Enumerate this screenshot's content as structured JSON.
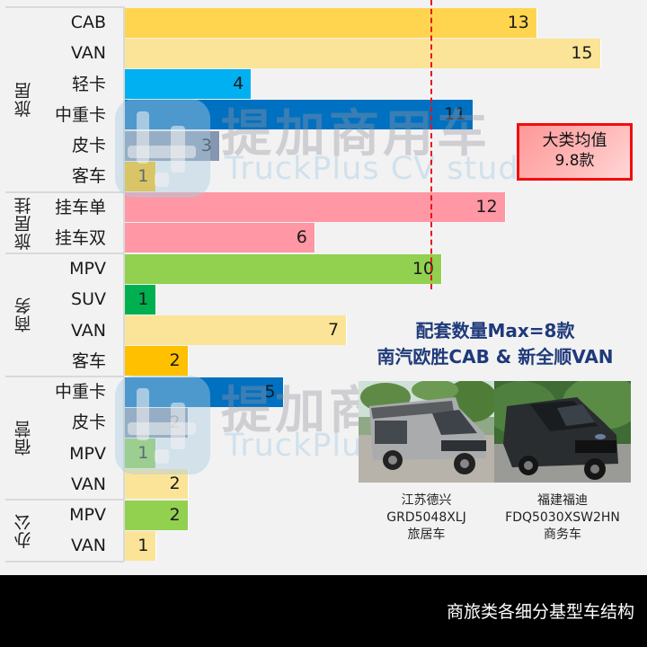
{
  "chart_data": {
    "type": "bar",
    "orientation": "horizontal",
    "title": "商旅类各细分基型车结构",
    "xlabel": "",
    "ylabel": "",
    "grid": false,
    "groups": [
      {
        "name": "旅居",
        "rows": [
          {
            "label": "CAB",
            "value": 13,
            "color": "#ffd54f"
          },
          {
            "label": "VAN",
            "value": 15,
            "color": "#fbe497"
          },
          {
            "label": "轻卡",
            "value": 4,
            "color": "#00b0f0"
          },
          {
            "label": "中重卡",
            "value": 11,
            "color": "#0070c0"
          },
          {
            "label": "皮卡",
            "value": 3,
            "color": "#8496b0"
          },
          {
            "label": "客车",
            "value": 1,
            "color": "#ffc000"
          }
        ]
      },
      {
        "name": "旅居挂",
        "rows": [
          {
            "label": "挂车单",
            "value": 12,
            "color": "#ff97a4"
          },
          {
            "label": "挂车双",
            "value": 6,
            "color": "#ff97a4"
          }
        ]
      },
      {
        "name": "商务",
        "rows": [
          {
            "label": "MPV",
            "value": 10,
            "color": "#92d050"
          },
          {
            "label": "SUV",
            "value": 1,
            "color": "#00b050"
          },
          {
            "label": "VAN",
            "value": 7,
            "color": "#fbe497"
          },
          {
            "label": "客车",
            "value": 2,
            "color": "#ffc000"
          }
        ]
      },
      {
        "name": "宿营",
        "rows": [
          {
            "label": "中重卡",
            "value": 5,
            "color": "#0070c0"
          },
          {
            "label": "皮卡",
            "value": 2,
            "color": "#8496b0"
          },
          {
            "label": "MPV",
            "value": 1,
            "color": "#92d050"
          },
          {
            "label": "VAN",
            "value": 2,
            "color": "#fbe497"
          }
        ]
      },
      {
        "name": "办公",
        "rows": [
          {
            "label": "MPV",
            "value": 2,
            "color": "#92d050"
          },
          {
            "label": "VAN",
            "value": 1,
            "color": "#fbe497"
          }
        ]
      }
    ],
    "categories": [
      "旅居-CAB",
      "旅居-VAN",
      "旅居-轻卡",
      "旅居-中重卡",
      "旅居-皮卡",
      "旅居-客车",
      "旅居挂-挂车单",
      "旅居挂-挂车双",
      "商务-MPV",
      "商务-SUV",
      "商务-VAN",
      "商务-客车",
      "宿营-中重卡",
      "宿营-皮卡",
      "宿营-MPV",
      "宿营-VAN",
      "办公-MPV",
      "办公-VAN"
    ],
    "values": [
      13,
      15,
      4,
      11,
      3,
      1,
      12,
      6,
      10,
      1,
      7,
      2,
      5,
      2,
      1,
      2,
      2,
      1
    ],
    "xlim": [
      0,
      16
    ],
    "reference_line": {
      "value": 9.8,
      "label": "大类均值 9.8款",
      "style": "dashed",
      "color": "#e8141b"
    },
    "annotations": [
      "大类均值 9.8款",
      "配套数量Max=8款",
      "南汽欧胜CAB & 新全顺VAN"
    ]
  },
  "avg_box": {
    "line1": "大类均值",
    "line2": "9.8款"
  },
  "note": {
    "line1": "配套数量Max=8款",
    "line2": "南汽欧胜CAB & 新全顺VAN"
  },
  "vehicles": [
    {
      "maker": "江苏德兴",
      "model": "GRD5048XLJ",
      "type": "旅居车"
    },
    {
      "maker": "福建福迪",
      "model": "FDQ5030XSW2HN",
      "type": "商务车"
    }
  ],
  "watermark": {
    "cn": "提加商用车",
    "en": "TruckPlus CV studio"
  },
  "footer": {
    "caption": "商旅类各细分基型车结构"
  }
}
